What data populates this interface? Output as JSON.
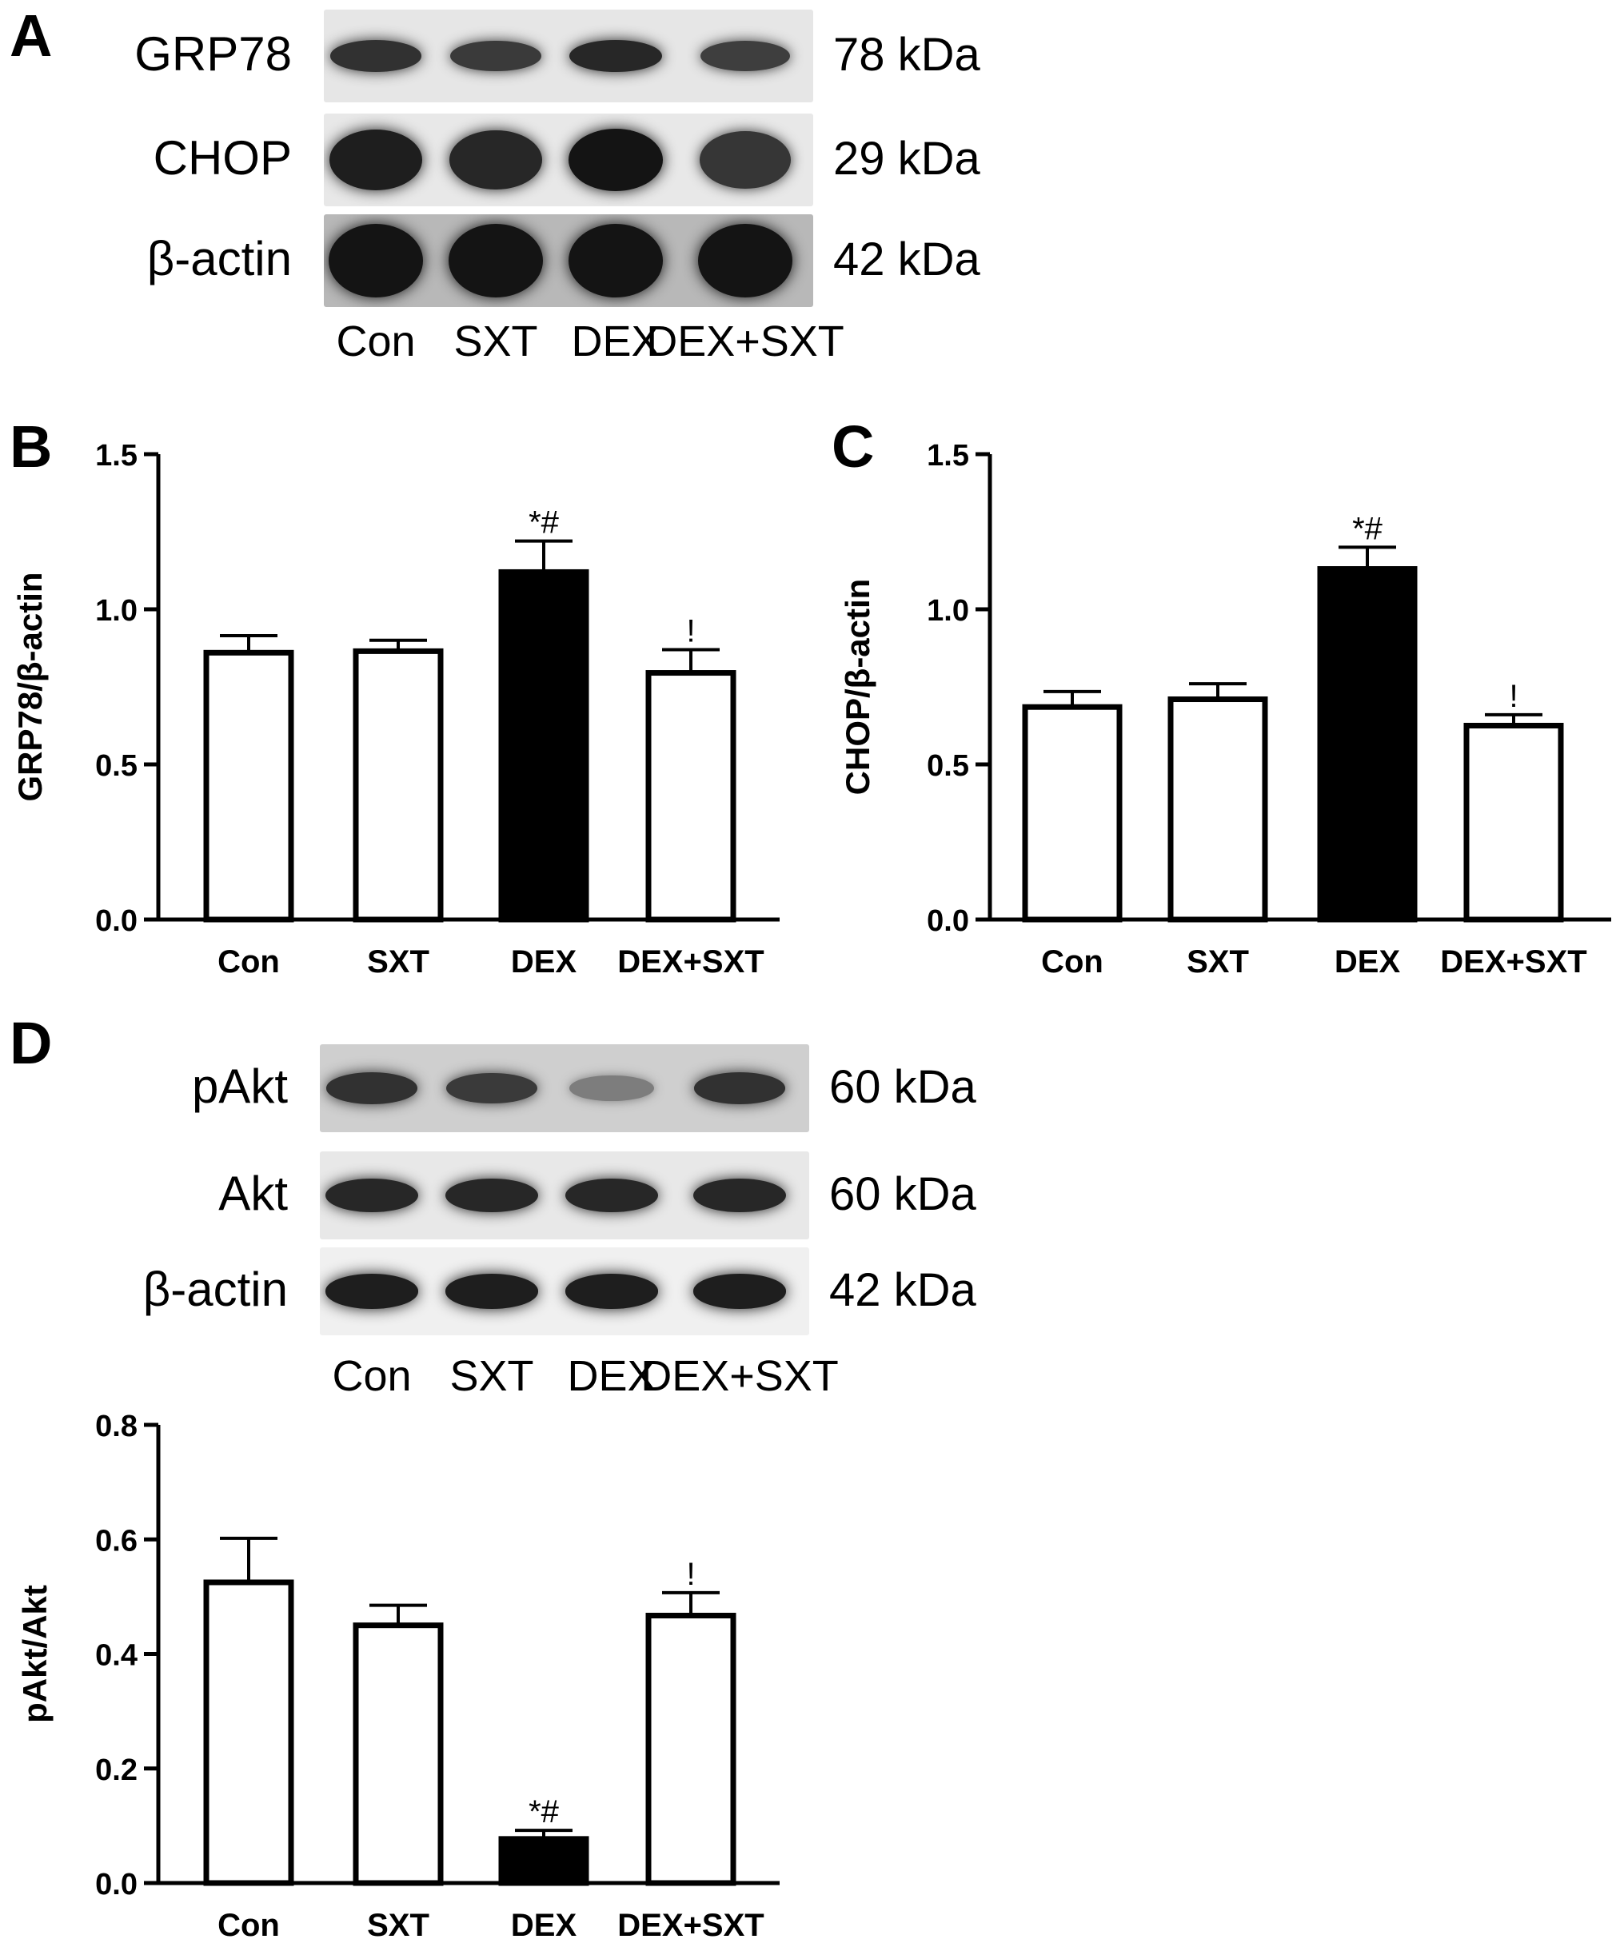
{
  "panels": {
    "A": {
      "letter": "A",
      "lanes": [
        "Con",
        "SXT",
        "DEX",
        "DEX+SXT"
      ],
      "blots": [
        {
          "protein": "GRP78",
          "size": "78 kDa",
          "intensities": [
            0.85,
            0.8,
            0.9,
            0.78
          ]
        },
        {
          "protein": "CHOP",
          "size": "29 kDa",
          "intensities": [
            0.95,
            0.9,
            1.0,
            0.82
          ]
        },
        {
          "protein": "β-actin",
          "size": "42 kDa",
          "intensities": [
            1.0,
            1.0,
            1.0,
            1.0
          ]
        }
      ]
    },
    "D_blot": {
      "letter": "D",
      "lanes": [
        "Con",
        "SXT",
        "DEX",
        "DEX+SXT"
      ],
      "blots": [
        {
          "protein": "pAkt",
          "size": "60 kDa",
          "intensities": [
            0.85,
            0.8,
            0.45,
            0.85
          ]
        },
        {
          "protein": "Akt",
          "size": "60 kDa",
          "intensities": [
            0.9,
            0.9,
            0.9,
            0.9
          ]
        },
        {
          "protein": "β-actin",
          "size": "42 kDa",
          "intensities": [
            0.95,
            0.95,
            0.95,
            0.95
          ]
        }
      ]
    }
  },
  "chart_data": [
    {
      "id": "B",
      "letter": "B",
      "type": "bar",
      "categories": [
        "Con",
        "SXT",
        "DEX",
        "DEX+SXT"
      ],
      "values": [
        0.86,
        0.865,
        1.12,
        0.795
      ],
      "errors": [
        0.055,
        0.035,
        0.1,
        0.075
      ],
      "fills": [
        "#ffffff",
        "#ffffff",
        "#000000",
        "#ffffff"
      ],
      "annotations": [
        "",
        "",
        "*#",
        "!"
      ],
      "ylabel": "GRP78/β-actin",
      "ylim": [
        0,
        1.5
      ],
      "yticks": [
        "0.0",
        "0.5",
        "1.0",
        "1.5"
      ]
    },
    {
      "id": "C",
      "letter": "C",
      "type": "bar",
      "categories": [
        "Con",
        "SXT",
        "DEX",
        "DEX+SXT"
      ],
      "values": [
        0.685,
        0.71,
        1.13,
        0.625
      ],
      "errors": [
        0.05,
        0.05,
        0.07,
        0.035
      ],
      "fills": [
        "#ffffff",
        "#ffffff",
        "#000000",
        "#ffffff"
      ],
      "annotations": [
        "",
        "",
        "*#",
        "!"
      ],
      "ylabel": "CHOP/β-actin",
      "ylim": [
        0,
        1.5
      ],
      "yticks": [
        "0.0",
        "0.5",
        "1.0",
        "1.5"
      ]
    },
    {
      "id": "D",
      "letter": "",
      "type": "bar",
      "categories": [
        "Con",
        "SXT",
        "DEX",
        "DEX+SXT"
      ],
      "values": [
        0.525,
        0.45,
        0.077,
        0.467
      ],
      "errors": [
        0.077,
        0.035,
        0.015,
        0.04
      ],
      "fills": [
        "#ffffff",
        "#ffffff",
        "#000000",
        "#ffffff"
      ],
      "annotations": [
        "",
        "",
        "*#",
        "!"
      ],
      "ylabel": "pAkt/Akt",
      "ylim": [
        0,
        0.8
      ],
      "yticks": [
        "0.0",
        "0.2",
        "0.4",
        "0.6",
        "0.8"
      ]
    }
  ]
}
